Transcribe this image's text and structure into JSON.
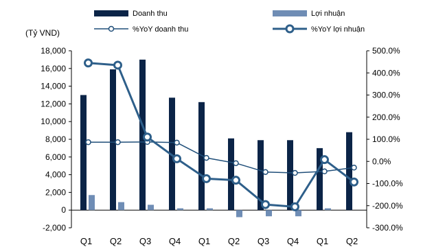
{
  "chart_data": {
    "type": "bar",
    "y_unit_label": "(Tỷ VND)",
    "categories": [
      "Q1",
      "Q2",
      "Q3",
      "Q4",
      "Q1",
      "Q2",
      "Q3",
      "Q4",
      "Q1",
      "Q2"
    ],
    "y_left_ticks": [
      "18,000",
      "16,000",
      "14,000",
      "12,000",
      "10,000",
      "8,000",
      "6,000",
      "4,000",
      "2,000",
      "0",
      "-2,000"
    ],
    "y_right_ticks": [
      "500.0%",
      "400.0%",
      "300.0%",
      "200.0%",
      "100.0%",
      "0.0%",
      "-100.0%",
      "-200.0%",
      "-300.0%"
    ],
    "ylim_left": [
      -2000,
      18000
    ],
    "ylim_right": [
      -300,
      500
    ],
    "bar_series": [
      {
        "name": "Doanh thu",
        "color": "#0b2447",
        "axis": "left",
        "values": [
          13000,
          15900,
          17000,
          12700,
          12200,
          8100,
          7900,
          7900,
          7000,
          8800
        ]
      },
      {
        "name": "Lợi nhuận",
        "color": "#6f8db5",
        "axis": "left",
        "values": [
          1700,
          900,
          600,
          200,
          200,
          -800,
          -700,
          -700,
          200,
          0
        ]
      }
    ],
    "line_series": [
      {
        "name": "%YoY doanh thu",
        "color": "#1f4e79",
        "axis": "right",
        "style": "thin",
        "values": [
          87,
          87,
          88,
          85,
          16,
          -8,
          -48,
          -52,
          -45,
          -28
        ]
      },
      {
        "name": "%YoY lợi nhuận",
        "color": "#2e5f8a",
        "axis": "right",
        "style": "thick",
        "values": [
          445,
          435,
          110,
          12,
          -78,
          -85,
          -195,
          -205,
          8,
          -93
        ]
      }
    ]
  }
}
